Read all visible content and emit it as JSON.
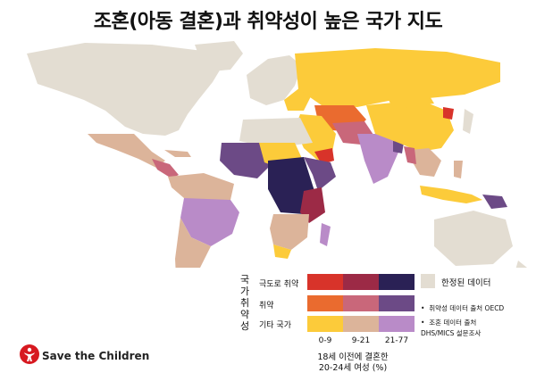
{
  "title": "조혼(아동 결혼)과 취약성이 높은 국가 지도",
  "legend": {
    "side_label": "국가 취약성",
    "rows": [
      "극도로 취약",
      "취약",
      "기타 국가"
    ],
    "columns": [
      "0-9",
      "9-21",
      "21-77"
    ],
    "colors": [
      [
        "#d8332a",
        "#9c2a46",
        "#2a2155"
      ],
      [
        "#ea6b2f",
        "#c9677a",
        "#6c4a86"
      ],
      [
        "#fccb3a",
        "#dcb49a",
        "#b98bc8"
      ]
    ],
    "caption_line1": "18세 이전에 결혼한",
    "caption_line2": "20-24세 여성 (%)",
    "limited_data_label": "한정된 데이터",
    "limited_data_color": "#e3ddd2",
    "source_1": "취약성 데이터 출처 OECD",
    "source_2a": "조혼 데이터 출처",
    "source_2b": "DHS/MICS 설문조사"
  },
  "logo": {
    "text": "Save the Children",
    "color": "#d71920"
  }
}
